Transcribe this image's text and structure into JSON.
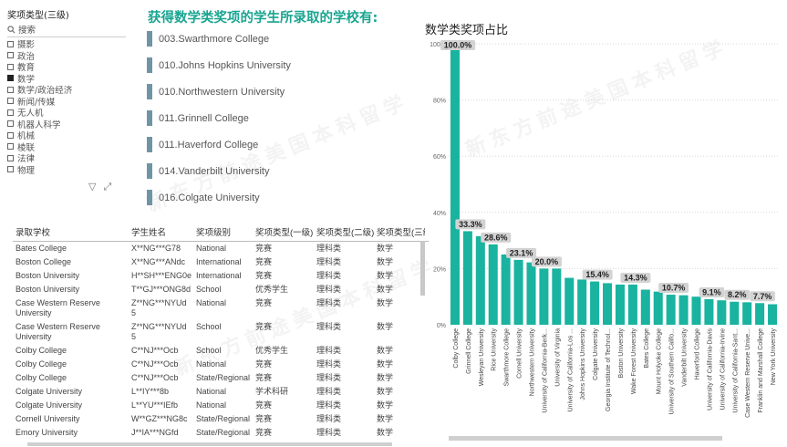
{
  "slicer": {
    "title": "奖项类型(三级)",
    "search_placeholder": "搜索",
    "items": [
      {
        "label": "摄影",
        "checked": false
      },
      {
        "label": "政治",
        "checked": false
      },
      {
        "label": "教育",
        "checked": false
      },
      {
        "label": "数学",
        "checked": true
      },
      {
        "label": "数学/政治经济",
        "checked": false
      },
      {
        "label": "新闻/传媒",
        "checked": false
      },
      {
        "label": "无人机",
        "checked": false
      },
      {
        "label": "机器人科学",
        "checked": false
      },
      {
        "label": "机械",
        "checked": false
      },
      {
        "label": "棱联",
        "checked": false
      },
      {
        "label": "法律",
        "checked": false
      },
      {
        "label": "物理",
        "checked": false
      }
    ]
  },
  "uni_panel": {
    "title": "获得数学类奖项的学生所录取的学校有:",
    "items": [
      "003.Swarthmore College",
      "010.Johns Hopkins University",
      "010.Northwestern University",
      "011.Grinnell College",
      "011.Haverford College",
      "014.Vanderbilt University",
      "016.Colgate University"
    ]
  },
  "table": {
    "headers": [
      "录取学校",
      "学生姓名",
      "奖项级别",
      "奖项类型(一级)",
      "奖项类型(二级)",
      "奖项类型(三级)"
    ],
    "rows": [
      [
        "Bates College",
        "X**NG***G78",
        "National",
        "竞赛",
        "理科类",
        "数学"
      ],
      [
        "Boston College",
        "X**NG***ANdc",
        "International",
        "竞赛",
        "理科类",
        "数学"
      ],
      [
        "Boston University",
        "H**SH***ENG0e",
        "International",
        "竞赛",
        "理科类",
        "数学"
      ],
      [
        "Boston University",
        "T**GJ***ONG8d",
        "School",
        "优秀学生",
        "理科类",
        "数学"
      ],
      [
        "Case Western Reserve University",
        "Z**NG***NYUd 5",
        "National",
        "竞赛",
        "理科类",
        "数学"
      ],
      [
        "Case Western Reserve University",
        "Z**NG***NYUd 5",
        "School",
        "竞赛",
        "理科类",
        "数学"
      ],
      [
        "Colby College",
        "C**NJ***Ocb",
        "School",
        "优秀学生",
        "理科类",
        "数学"
      ],
      [
        "Colby College",
        "C**NJ***Ocb",
        "National",
        "竞赛",
        "理科类",
        "数学"
      ],
      [
        "Colby College",
        "C**NJ***Ocb",
        "State/Regional",
        "竞赛",
        "理科类",
        "数学"
      ],
      [
        "Colgate University",
        "L**IY***8b",
        "National",
        "学术科研",
        "理科类",
        "数学"
      ],
      [
        "Colgate University",
        "L**YU***IEfb",
        "National",
        "竞赛",
        "理科类",
        "数学"
      ],
      [
        "Cornell University",
        "W**GZ***NG8c",
        "State/Regional",
        "竞赛",
        "理科类",
        "数学"
      ],
      [
        "Emory University",
        "J**IA***NGfd",
        "State/Regional",
        "竞赛",
        "理科类",
        "数学"
      ]
    ]
  },
  "watermark": "新东方前途美国本科留学",
  "colors": {
    "accent": "#1aa591",
    "bar": "#19b3a0",
    "uni_bar": "#6f95a5",
    "label_bg": "#d3d3d3"
  },
  "chart_data": {
    "type": "bar",
    "title": "数学类奖项占比",
    "ylim": [
      0,
      100
    ],
    "yticks": [
      "0%",
      "20%",
      "40%",
      "60%",
      "80%",
      "100%"
    ],
    "grid": true,
    "categories": [
      "Colby College",
      "Grinnell College",
      "Wesleyan University",
      "Rice University",
      "Swarthmore College",
      "Cornell University",
      "Northwestern University",
      "University of California-Berk...",
      "University of Virginia",
      "University of California-Los ...",
      "Johns Hopkins University",
      "Colgate University",
      "Georgia Institute of Technol...",
      "Boston University",
      "Wake Forest University",
      "Bates College",
      "Mount Holyoke College",
      "University of Southern Califo...",
      "Vanderbilt University",
      "Haverford College",
      "University of California-Davis",
      "University of California-Irvine",
      "University of California-Sant...",
      "Case Western Reserve Unive...",
      "Franklin and Marshall College",
      "New York University"
    ],
    "values": [
      100,
      33.3,
      31.5,
      28.6,
      25,
      23.1,
      22.2,
      20,
      20,
      16.7,
      16.1,
      15.4,
      14.8,
      14.3,
      14.3,
      12.5,
      11.8,
      10.7,
      10.5,
      10,
      9.1,
      8.7,
      8.2,
      8,
      7.7,
      7.3
    ],
    "labels": {
      "0": "100.0%",
      "1": "33.3%",
      "3": "28.6%",
      "5": "23.1%",
      "7": "20.0%",
      "11": "15.4%",
      "14": "14.3%",
      "17": "10.7%",
      "20": "9.1%",
      "22": "8.2%",
      "24": "7.7%"
    }
  }
}
